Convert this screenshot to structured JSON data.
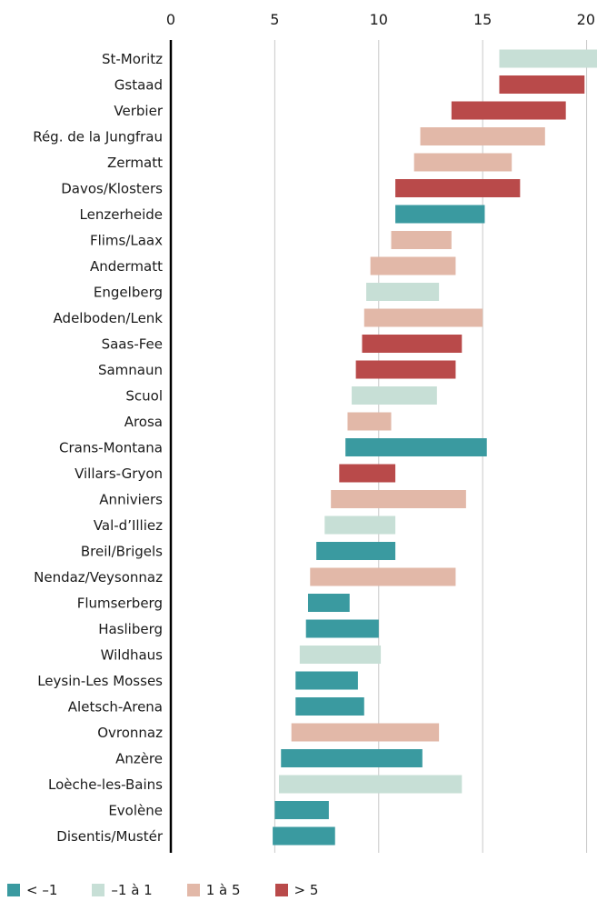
{
  "chart_data": {
    "type": "bar",
    "orientation": "horizontal-range",
    "title": "",
    "xlabel": "",
    "ylabel": "",
    "xlim": [
      0,
      20.5
    ],
    "xticks": [
      "0",
      "5",
      "10",
      "15",
      "20"
    ],
    "xtick_values": [
      0,
      5,
      10,
      15,
      20
    ],
    "grid": true,
    "legend_placement": "bottom",
    "categories": [
      "St-Moritz",
      "Gstaad",
      "Verbier",
      "Rég. de la Jungfrau",
      "Zermatt",
      "Davos/Klosters",
      "Lenzerheide",
      "Flims/Laax",
      "Andermatt",
      "Engelberg",
      "Adelboden/Lenk",
      "Saas-Fee",
      "Samnaun",
      "Scuol",
      "Arosa",
      "Crans-Montana",
      "Villars-Gryon",
      "Anniviers",
      "Val-d’Illiez",
      "Breil/Brigels",
      "Nendaz/Veysonnaz",
      "Flumserberg",
      "Hasliberg",
      "Wildhaus",
      "Leysin-Les Mosses",
      "Aletsch-Arena",
      "Ovronnaz",
      "Anzère",
      "Loèche-les-Bains",
      "Evolène",
      "Disentis/Mustér"
    ],
    "start": [
      15.8,
      15.8,
      13.5,
      12.0,
      11.7,
      10.8,
      10.8,
      10.6,
      9.6,
      9.4,
      9.3,
      9.2,
      8.9,
      8.7,
      8.5,
      8.4,
      8.1,
      7.7,
      7.4,
      7.0,
      6.7,
      6.6,
      6.5,
      6.2,
      6.0,
      6.0,
      5.8,
      5.3,
      5.2,
      5.0,
      4.9
    ],
    "end": [
      20.5,
      19.9,
      19.0,
      18.0,
      16.4,
      16.8,
      15.1,
      13.5,
      13.7,
      12.9,
      15.0,
      14.0,
      13.7,
      12.8,
      10.6,
      15.2,
      10.8,
      14.2,
      10.8,
      10.8,
      13.7,
      8.6,
      10.0,
      10.1,
      9.0,
      9.3,
      12.9,
      12.1,
      14.0,
      7.6,
      7.9
    ],
    "group": [
      1,
      3,
      3,
      2,
      2,
      3,
      0,
      2,
      2,
      1,
      2,
      3,
      3,
      1,
      2,
      0,
      3,
      2,
      1,
      0,
      2,
      0,
      0,
      1,
      0,
      0,
      2,
      0,
      1,
      0,
      0
    ],
    "legend": [
      {
        "name": "< –1",
        "color": "#3a9aa0"
      },
      {
        "name": "–1 à 1",
        "color": "#c7dfd6"
      },
      {
        "name": "1 à 5",
        "color": "#e2b8a8"
      },
      {
        "name": "> 5",
        "color": "#b94a4a"
      }
    ]
  },
  "colors": {
    "grid": "#c8c8c8",
    "axis": "#000000",
    "text": "#1a1a1a"
  }
}
